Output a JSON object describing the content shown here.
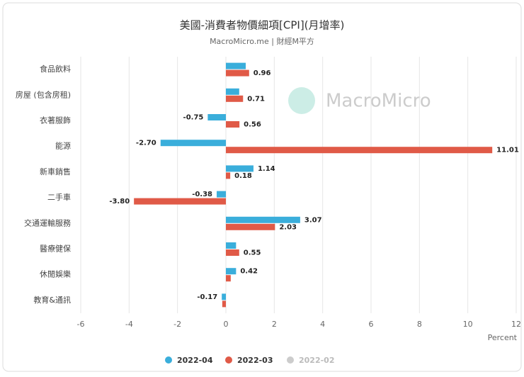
{
  "chart_data": {
    "type": "bar",
    "orientation": "horizontal",
    "title": "美國-消費者物價細項[CPI](月增率)",
    "subtitle": "MacroMicro.me | 財經M平方",
    "watermark": "MacroMicro",
    "x_label": "Percent",
    "categories": [
      "食品飲料",
      "房屋 (包含房租)",
      "衣著服飾",
      "能源",
      "新車銷售",
      "二手車",
      "交通運輸服務",
      "醫療健保",
      "休閒娛樂",
      "教育&通訊"
    ],
    "series": [
      {
        "name": "2022-04",
        "color": "#3aaedb",
        "values": [
          0.82,
          0.55,
          -0.75,
          -2.7,
          1.14,
          -0.38,
          3.07,
          0.42,
          0.42,
          -0.17
        ],
        "value_labels": [
          null,
          null,
          "-0.75",
          "-2.70",
          "1.14",
          "-0.38",
          "3.07",
          null,
          "0.42",
          "-0.17"
        ]
      },
      {
        "name": "2022-03",
        "color": "#e05a47",
        "values": [
          0.96,
          0.71,
          0.56,
          11.01,
          0.18,
          -3.8,
          2.03,
          0.55,
          0.2,
          -0.15
        ],
        "value_labels": [
          "0.96",
          "0.71",
          "0.56",
          "11.01",
          "0.18",
          "-3.80",
          "2.03",
          "0.55",
          null,
          null
        ]
      },
      {
        "name": "2022-02",
        "color": "#cccccc",
        "hidden": true,
        "values": [
          null,
          null,
          null,
          null,
          null,
          null,
          null,
          null,
          null,
          null
        ]
      }
    ],
    "xlim": [
      -6,
      12
    ],
    "xticks": [
      -6,
      -4,
      -2,
      0,
      2,
      4,
      6,
      8,
      10,
      12
    ],
    "grid": true
  }
}
